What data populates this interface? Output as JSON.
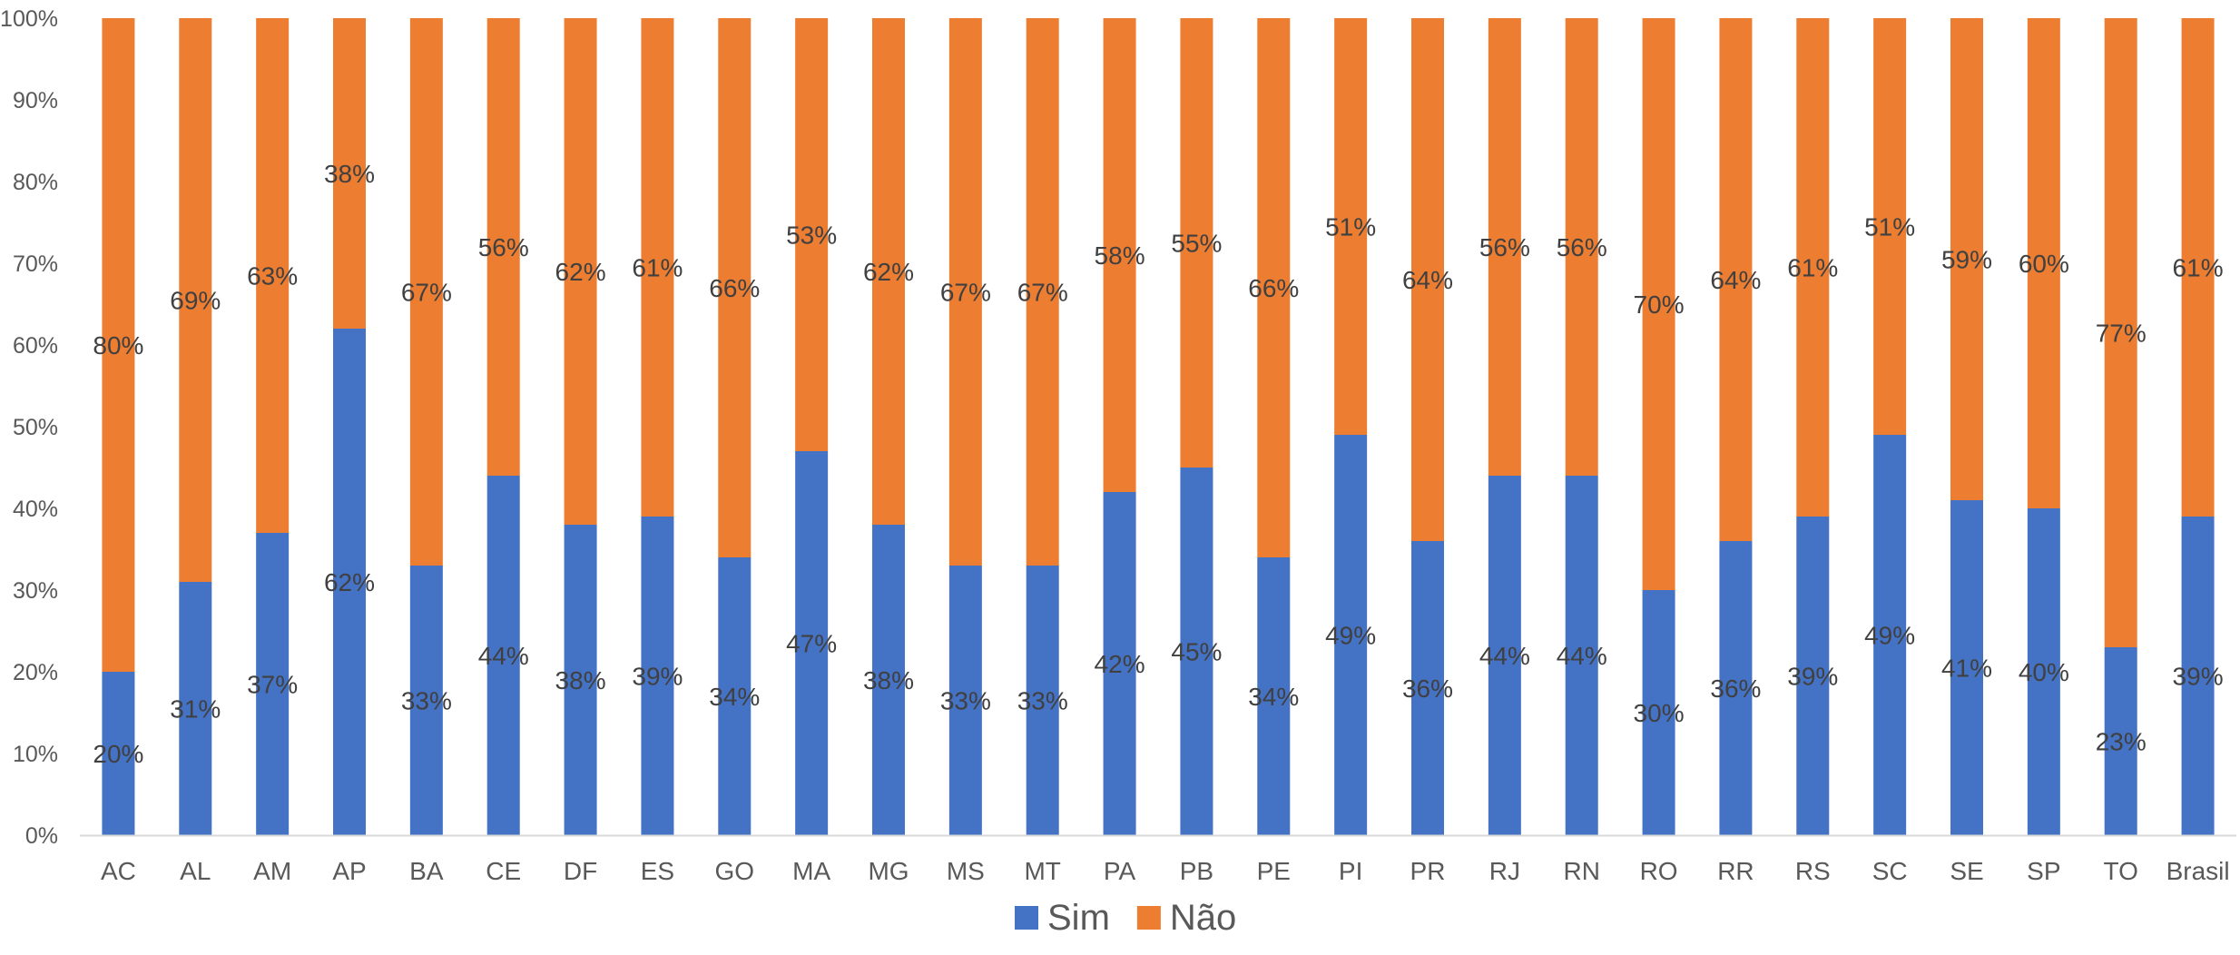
{
  "chart_data": {
    "type": "bar",
    "stacked": true,
    "normalized_percent": true,
    "categories": [
      "AC",
      "AL",
      "AM",
      "AP",
      "BA",
      "CE",
      "DF",
      "ES",
      "GO",
      "MA",
      "MG",
      "MS",
      "MT",
      "PA",
      "PB",
      "PE",
      "PI",
      "PR",
      "RJ",
      "RN",
      "RO",
      "RR",
      "RS",
      "SC",
      "SE",
      "SP",
      "TO",
      "Brasil"
    ],
    "series": [
      {
        "name": "Sim",
        "color": "#4472C4",
        "values": [
          20,
          31,
          37,
          62,
          33,
          44,
          38,
          39,
          34,
          47,
          38,
          33,
          33,
          42,
          45,
          34,
          49,
          36,
          44,
          44,
          30,
          36,
          39,
          49,
          41,
          40,
          23,
          39
        ],
        "labels": [
          "20%",
          "31%",
          "37%",
          "62%",
          "33%",
          "44%",
          "38%",
          "39%",
          "34%",
          "47%",
          "38%",
          "33%",
          "33%",
          "42%",
          "45%",
          "34%",
          "49%",
          "36%",
          "44%",
          "44%",
          "30%",
          "36%",
          "39%",
          "49%",
          "41%",
          "40%",
          "23%",
          "39%"
        ]
      },
      {
        "name": "Não",
        "color": "#ED7D31",
        "values": [
          80,
          69,
          63,
          38,
          67,
          56,
          62,
          61,
          66,
          53,
          62,
          67,
          67,
          58,
          55,
          66,
          51,
          64,
          56,
          56,
          70,
          64,
          61,
          51,
          59,
          60,
          77,
          61
        ],
        "labels": [
          "80%",
          "69%",
          "63%",
          "38%",
          "67%",
          "56%",
          "62%",
          "61%",
          "66%",
          "53%",
          "62%",
          "67%",
          "67%",
          "58%",
          "55%",
          "66%",
          "51%",
          "64%",
          "56%",
          "56%",
          "70%",
          "64%",
          "61%",
          "51%",
          "59%",
          "60%",
          "77%",
          "61%"
        ]
      }
    ],
    "y_ticks": [
      "0%",
      "10%",
      "20%",
      "30%",
      "40%",
      "50%",
      "60%",
      "70%",
      "80%",
      "90%",
      "100%"
    ],
    "ylim": [
      0,
      100
    ],
    "legend_position": "bottom",
    "grid": false
  }
}
